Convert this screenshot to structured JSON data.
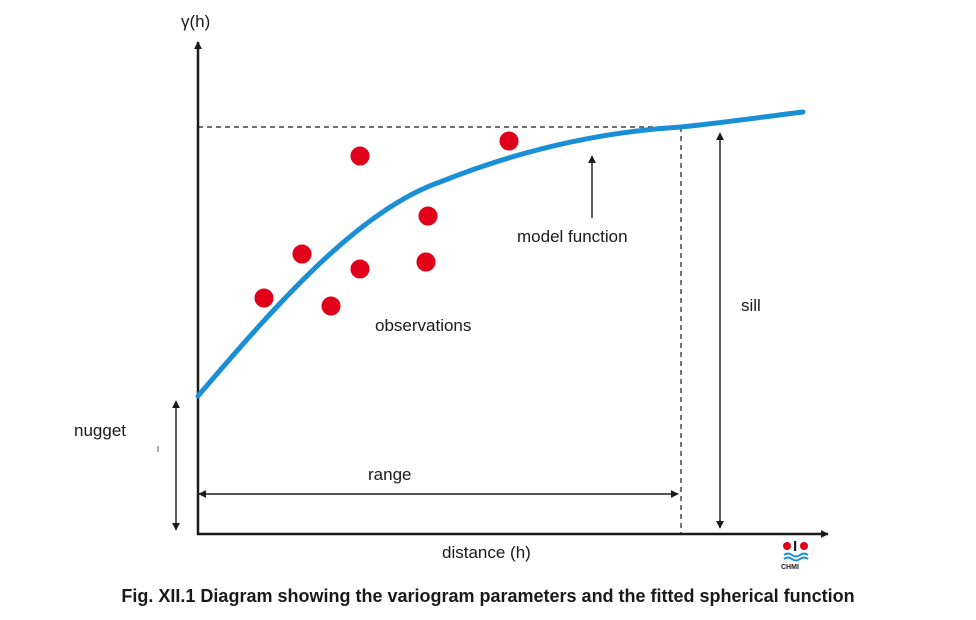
{
  "labels": {
    "y_axis": "γ(h)",
    "x_axis": "distance (h)",
    "model_function": "model function",
    "observations": "observations",
    "sill": "sill",
    "nugget": "nugget",
    "range": "range"
  },
  "caption": "Fig. XII.1  Diagram showing the variogram parameters and the fitted spherical function",
  "logo": {
    "text": "CHMI"
  },
  "colors": {
    "curve": "#1b8fd6",
    "observation": "#e0001a",
    "axis": "#1a1a1a",
    "logo_red": "#e0001a",
    "logo_blue": "#1b8fd6"
  }
}
